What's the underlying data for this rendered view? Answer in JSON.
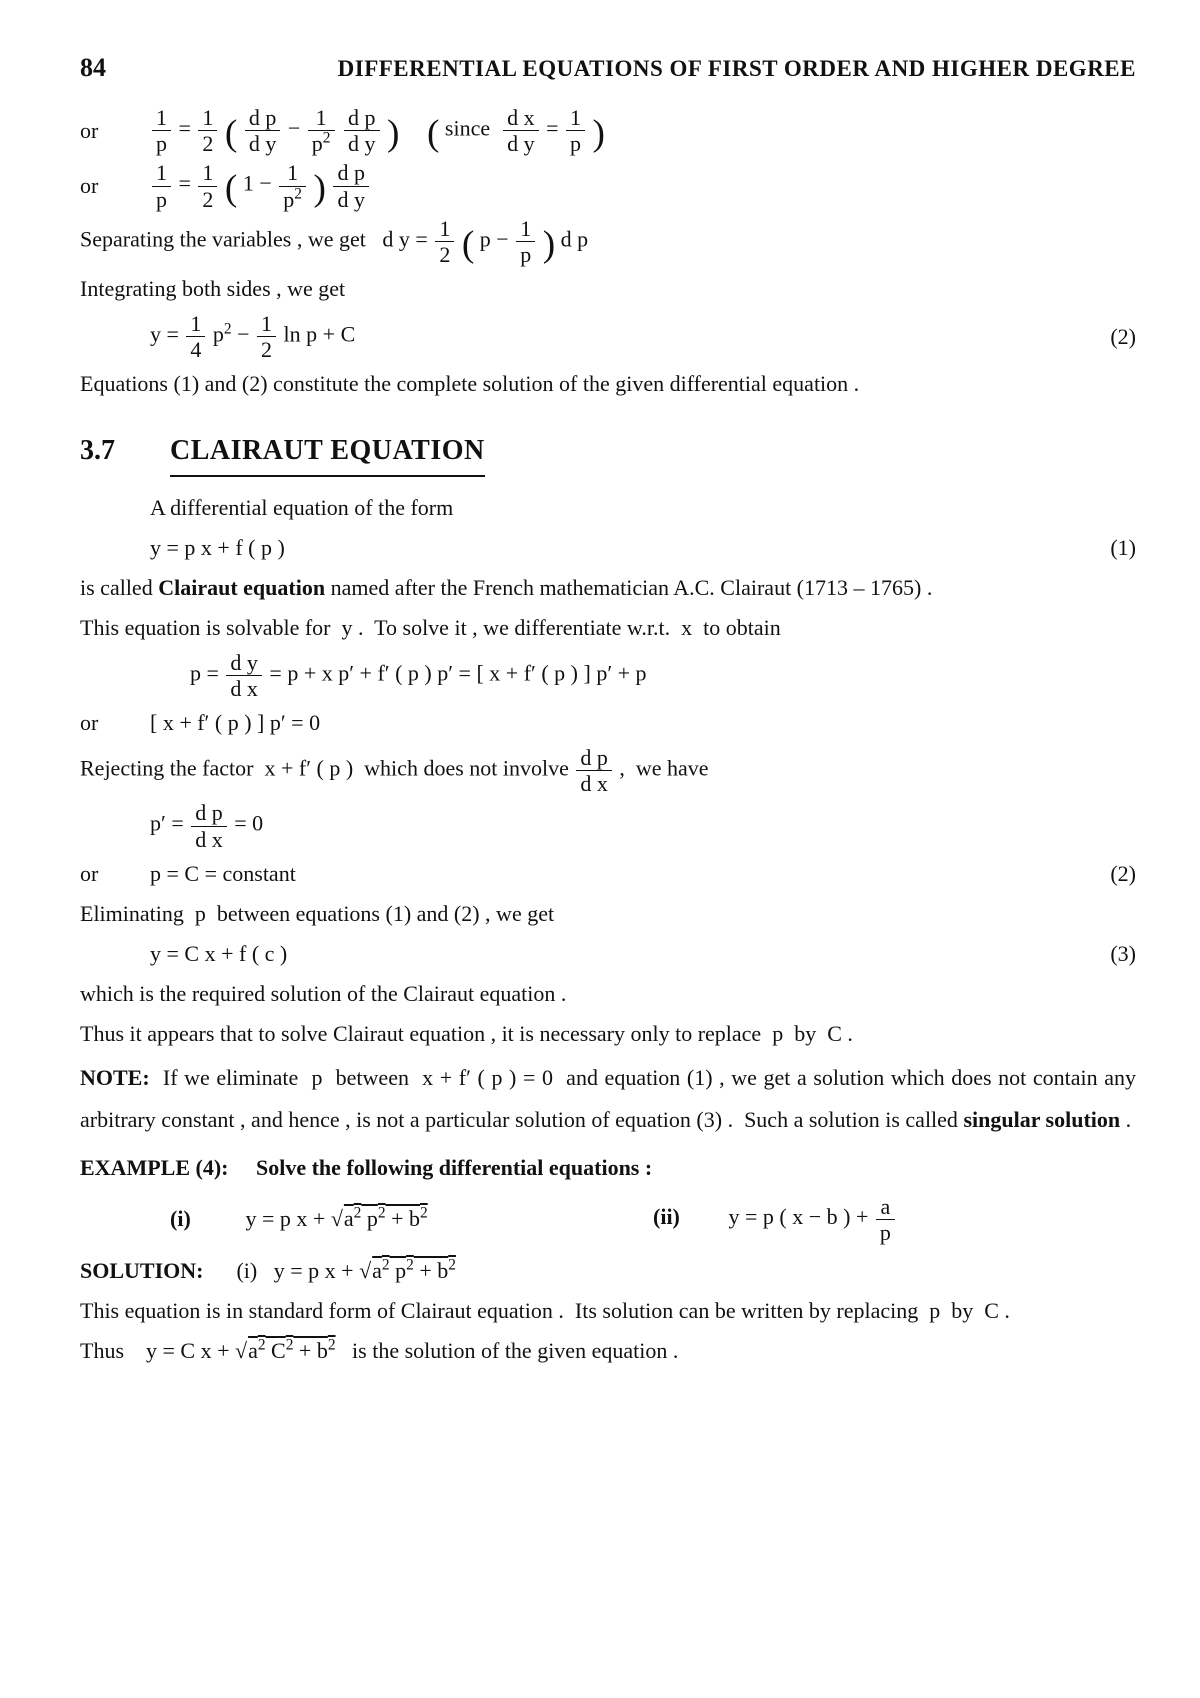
{
  "header": {
    "page_number": "84",
    "running_head": "DIFFERENTIAL EQUATIONS OF FIRST ORDER AND HIGHER DEGREE"
  },
  "top": {
    "or": "or",
    "line1_math": "<span class='frac'><span class='n'>1</span><span class='d'>p</span></span> = <span class='frac'><span class='n'>1</span><span class='d'>2</span></span> <span class='big'>(</span> <span class='frac'><span class='n'>d p</span><span class='d'>d y</span></span> − <span class='frac'><span class='n'>1</span><span class='d'>p<sup>2</sup></span></span> <span class='frac'><span class='n'>d p</span><span class='d'>d y</span></span> <span class='big'>)</span>  &nbsp;&nbsp;&nbsp; <span class='big'>(</span> since&nbsp; <span class='frac'><span class='n'>d x</span><span class='d'>d y</span></span> = <span class='frac'><span class='n'>1</span><span class='d'>p</span></span> <span class='big'>)</span>",
    "line2_math": "<span class='frac'><span class='n'>1</span><span class='d'>p</span></span> = <span class='frac'><span class='n'>1</span><span class='d'>2</span></span> <span class='big'>(</span> 1 − <span class='frac'><span class='n'>1</span><span class='d'>p<sup>2</sup></span></span> <span class='big'>)</span> <span class='frac'><span class='n'>d p</span><span class='d'>d y</span></span>",
    "sep": "Separating the variables , we get&nbsp;&nbsp; d y = <span class='frac'><span class='n'>1</span><span class='d'>2</span></span> <span class='big'>(</span> p − <span class='frac'><span class='n'>1</span><span class='d'>p</span></span> <span class='big'>)</span> d p",
    "int": "Integrating both sides , we get",
    "result": "y = <span class='frac'><span class='n'>1</span><span class='d'>4</span></span> p<sup>2</sup> − <span class='frac'><span class='n'>1</span><span class='d'>2</span></span> ln p + C",
    "result_num": "(2)",
    "conclude": "Equations (1) and (2) constitute the complete solution of the given differential equation ."
  },
  "section": {
    "num": "3.7",
    "title": "CLAIRAUT EQUATION"
  },
  "body": {
    "intro": "A differential equation of the form",
    "eq1": "y = p x + f ( p )",
    "eq1_num": "(1)",
    "p1": "is called <b>Clairaut equation</b> named after the French mathematician A.C. Clairaut (1713 – 1765) .",
    "p2": "This equation is solvable for&nbsp; y .&nbsp; To solve it , we differentiate w.r.t.&nbsp; x&nbsp; to obtain",
    "deriv": "p = <span class='frac'><span class='n'>d y</span><span class='d'>d x</span></span> = p + x p′ + f′ ( p ) p′ = [ x + f′ ( p ) ] p′ + p",
    "or_line": "[ x + f′ ( p ) ] p′ = 0",
    "reject": "Rejecting the factor&nbsp; x + f′ ( p )&nbsp; which does not involve <span class='frac'><span class='n'>d p</span><span class='d'>d x</span></span> ,&nbsp; we have",
    "pprime": "p′ = <span class='frac'><span class='n'>d p</span><span class='d'>d x</span></span> = 0",
    "const": "p = C = constant",
    "const_num": "(2)",
    "elim": "Eliminating&nbsp; p&nbsp; between equations (1) and (2) , we get",
    "eq3": "y = C x + f ( c )",
    "eq3_num": "(3)",
    "p3": "which is the required solution of the Clairaut equation .",
    "p4": "Thus it appears that to solve Clairaut equation , it is necessary only to replace&nbsp; p&nbsp; by&nbsp; C .",
    "note": "<b>NOTE:</b>&nbsp; If we eliminate&nbsp; p&nbsp; between&nbsp; x + f′ ( p ) = 0&nbsp; and equation (1) , we get a solution which does not contain any arbitrary constant , and hence , is not a particular solution of equation (3) .&nbsp; Such a solution is called <b>singular solution</b> .",
    "ex_head": "<b>EXAMPLE (4):</b>&nbsp;&nbsp;&nbsp;&nbsp;&nbsp;<b>Solve the following differential equations :</b>",
    "i_label": "(i)",
    "i_math": "y = p x + √<span class='sq'>a<sup>2</sup> p<sup>2</sup> + b<sup>2</sup></span>",
    "ii_label": "(ii)",
    "ii_math": "y = p ( x − b ) + <span class='frac'><span class='n'>a</span><span class='d'>p</span></span>",
    "sol_head": "<b>SOLUTION:</b>&nbsp;&nbsp;&nbsp;&nbsp;&nbsp;&nbsp;(i)&nbsp;&nbsp; y = p x + √<span class='sq'>a<sup>2</sup> p<sup>2</sup> + b<sup>2</sup></span>",
    "sol1": "This equation is in standard form of Clairaut equation .&nbsp; Its solution can be written by replacing&nbsp; p&nbsp; by&nbsp; C .",
    "sol2": "Thus&nbsp;&nbsp;&nbsp; y = C x + √<span class='sq'>a<sup>2</sup> C<sup>2</sup> + b<sup>2</sup></span>&nbsp;&nbsp; is the solution of the given equation ."
  }
}
